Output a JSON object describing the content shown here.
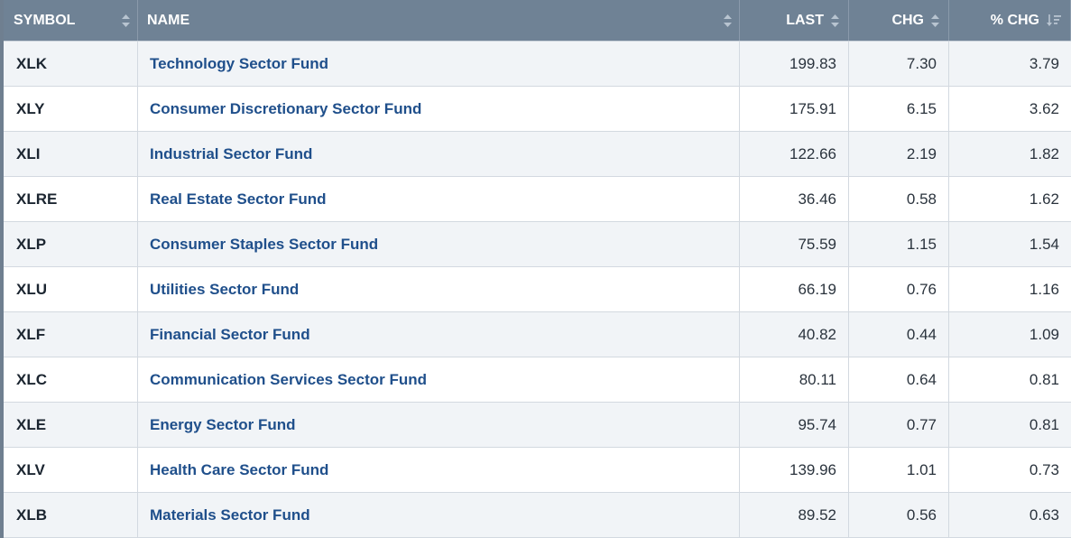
{
  "columns": {
    "symbol": "SYMBOL",
    "name": "NAME",
    "last": "LAST",
    "chg": "CHG",
    "pct_chg": "% CHG"
  },
  "rows": [
    {
      "symbol": "XLK",
      "name": "Technology Sector Fund",
      "last": "199.83",
      "chg": "7.30",
      "pct": "3.79"
    },
    {
      "symbol": "XLY",
      "name": "Consumer Discretionary Sector Fund",
      "last": "175.91",
      "chg": "6.15",
      "pct": "3.62"
    },
    {
      "symbol": "XLI",
      "name": "Industrial Sector Fund",
      "last": "122.66",
      "chg": "2.19",
      "pct": "1.82"
    },
    {
      "symbol": "XLRE",
      "name": "Real Estate Sector Fund",
      "last": "36.46",
      "chg": "0.58",
      "pct": "1.62"
    },
    {
      "symbol": "XLP",
      "name": "Consumer Staples Sector Fund",
      "last": "75.59",
      "chg": "1.15",
      "pct": "1.54"
    },
    {
      "symbol": "XLU",
      "name": "Utilities Sector Fund",
      "last": "66.19",
      "chg": "0.76",
      "pct": "1.16"
    },
    {
      "symbol": "XLF",
      "name": "Financial Sector Fund",
      "last": "40.82",
      "chg": "0.44",
      "pct": "1.09"
    },
    {
      "symbol": "XLC",
      "name": "Communication Services Sector Fund",
      "last": "80.11",
      "chg": "0.64",
      "pct": "0.81"
    },
    {
      "symbol": "XLE",
      "name": "Energy Sector Fund",
      "last": "95.74",
      "chg": "0.77",
      "pct": "0.81"
    },
    {
      "symbol": "XLV",
      "name": "Health Care Sector Fund",
      "last": "139.96",
      "chg": "1.01",
      "pct": "0.73"
    },
    {
      "symbol": "XLB",
      "name": "Materials Sector Fund",
      "last": "89.52",
      "chg": "0.56",
      "pct": "0.63"
    }
  ],
  "icons": {
    "sortable": "sort-both-arrows-icon",
    "sorted_desc": "sort-descending-icon"
  },
  "colors": {
    "header_bg": "#6f8295",
    "link": "#1f4f8b",
    "row_alt": "#f1f4f7"
  }
}
